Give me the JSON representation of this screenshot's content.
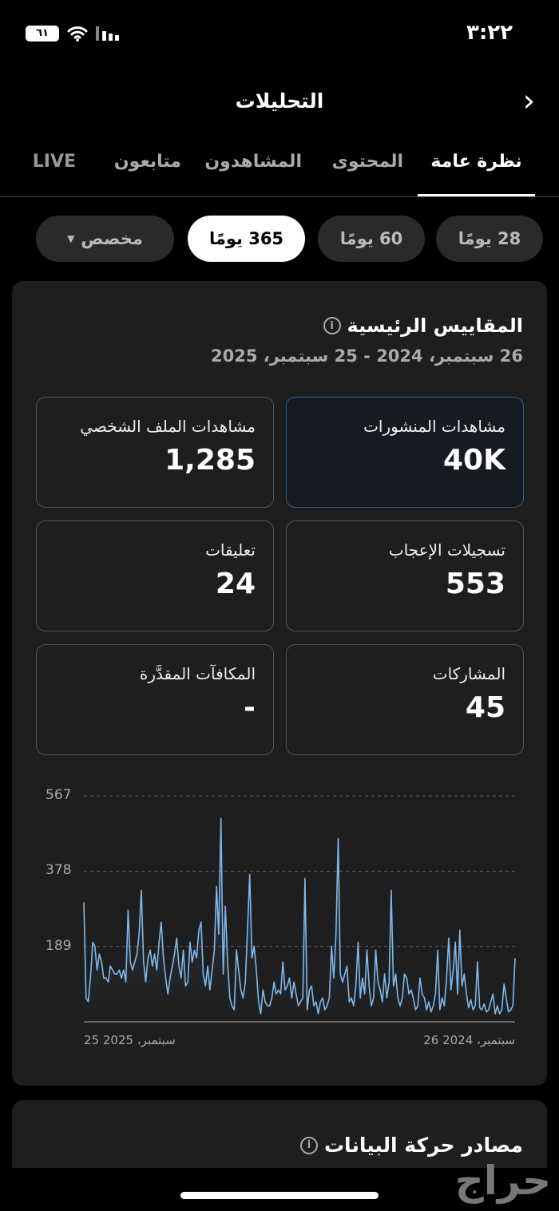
{
  "status_bar": {
    "time": "٣:٢٢",
    "battery": "٦١",
    "icons": [
      "battery-icon",
      "wifi-icon",
      "signal-icon"
    ]
  },
  "header": {
    "title": "التحليلات",
    "back_icon": "chevron-right-icon"
  },
  "tabs": [
    {
      "label": "نظرة عامة",
      "active": true
    },
    {
      "label": "المحتوى"
    },
    {
      "label": "المشاهدون"
    },
    {
      "label": "متابعون"
    },
    {
      "label": "LIVE"
    }
  ],
  "ranges": [
    {
      "label": "28 يومًا"
    },
    {
      "label": "60 يومًا"
    },
    {
      "label": "365 يومًا",
      "active": true
    },
    {
      "label": "مخصص"
    }
  ],
  "key_metrics": {
    "title": "المقاييس الرئيسية",
    "date_range": "26 سبتمبر، 2024 - 25 سبتمبر، 2025",
    "cards": [
      {
        "label": "مشاهدات المنشورات",
        "value": "40K",
        "selected": true
      },
      {
        "label": "مشاهدات الملف الشخصي",
        "value": "1,285"
      },
      {
        "label": "تسجيلات الإعجاب",
        "value": "553"
      },
      {
        "label": "تعليقات",
        "value": "24"
      },
      {
        "label": "المشاركات",
        "value": "45"
      },
      {
        "label": "المكافآت المقدَّرة",
        "value": "-"
      }
    ]
  },
  "chart_data": {
    "type": "line",
    "series_color": "#7fb8ec",
    "y_ticks": [
      "567",
      "378",
      "189"
    ],
    "ylim": [
      0,
      567
    ],
    "grid": true,
    "x_labels": {
      "start": "سبتمبر، 2024 26",
      "end": "سبتمبر، 2025 25"
    },
    "x_direction": "right-to-left",
    "values": [
      160,
      40,
      30,
      25,
      60,
      95,
      30,
      20,
      40,
      20,
      70,
      50,
      30,
      25,
      45,
      30,
      35,
      150,
      40,
      30,
      55,
      35,
      70,
      120,
      90,
      230,
      70,
      200,
      130,
      80,
      210,
      110,
      40,
      60,
      30,
      180,
      70,
      40,
      25,
      50,
      30,
      60,
      70,
      110,
      40,
      30,
      60,
      80,
      70,
      110,
      120,
      60,
      40,
      60,
      120,
      90,
      330,
      100,
      60,
      120,
      50,
      80,
      100,
      180,
      60,
      40,
      90,
      180,
      70,
      110,
      60,
      200,
      90,
      40,
      60,
      50,
      140,
      120,
      100,
      120,
      460,
      220,
      110,
      190,
      60,
      40,
      30,
      60,
      50,
      20,
      50,
      40,
      90,
      80,
      30,
      360,
      60,
      50,
      40,
      70,
      100,
      60,
      110,
      90,
      80,
      150,
      70,
      80,
      70,
      100,
      60,
      40,
      40,
      50,
      80,
      20,
      50,
      130,
      190,
      160,
      370,
      230,
      100,
      60,
      80,
      130,
      180,
      30,
      40,
      60,
      150,
      290,
      120,
      510,
      220,
      340,
      180,
      130,
      80,
      140,
      90,
      120,
      250,
      230,
      160,
      180,
      150,
      200,
      100,
      90,
      180,
      110,
      140,
      210,
      170,
      140,
      110,
      70,
      110,
      160,
      250,
      200,
      130,
      170,
      140,
      180,
      160,
      100,
      150,
      330,
      220,
      170,
      150,
      130,
      150,
      280,
      100,
      130,
      110,
      130,
      120,
      120,
      130,
      140,
      100,
      110,
      110,
      150,
      170,
      130,
      190,
      200,
      110,
      50,
      60,
      300
    ]
  },
  "traffic_sources": {
    "title": "مصادر حركة البيانات"
  },
  "watermark": "حراج"
}
